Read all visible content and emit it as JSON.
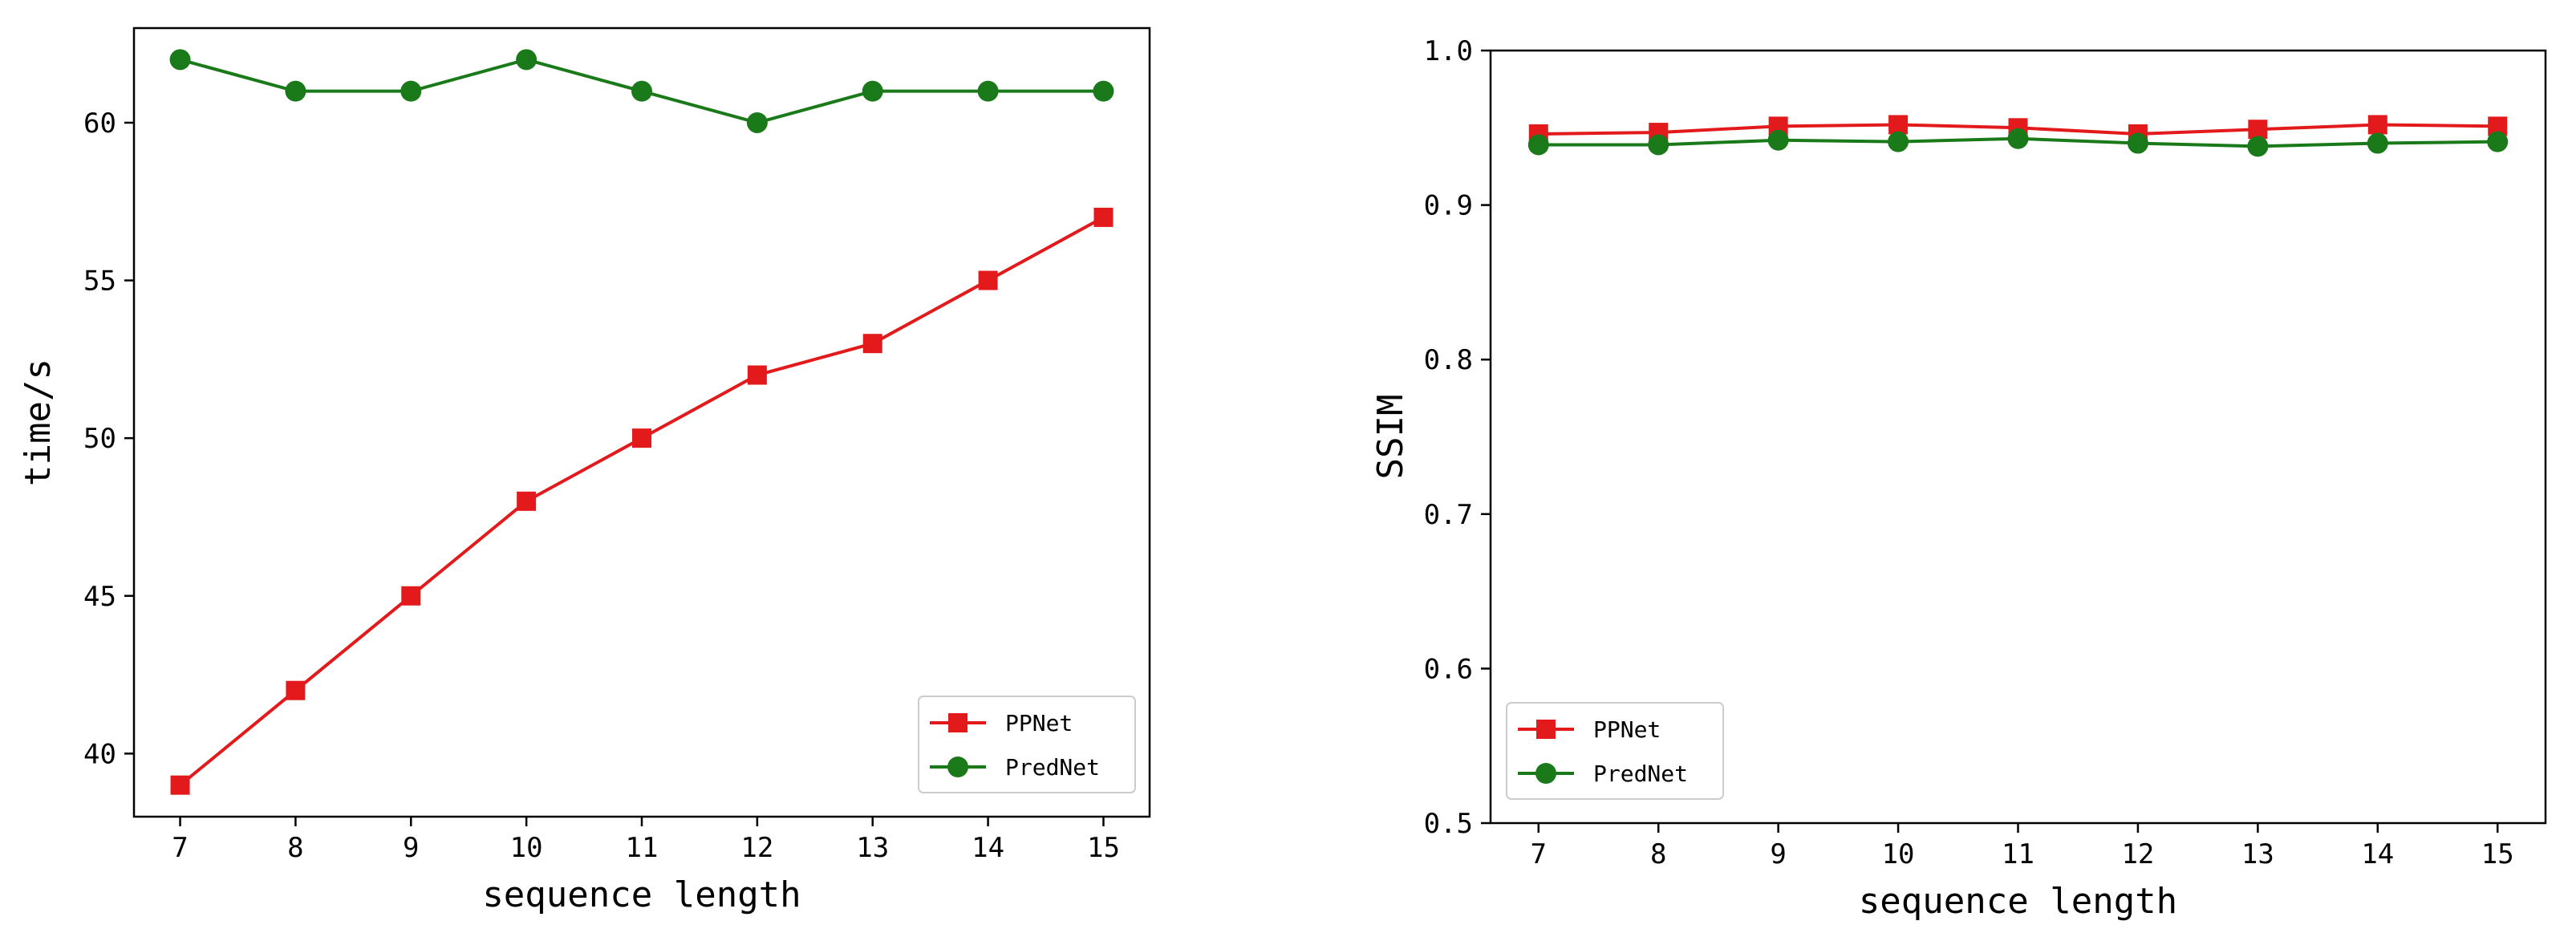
{
  "chart_data": [
    {
      "type": "line",
      "xlabel": "sequence length",
      "ylabel": "time/s",
      "x": [
        7,
        8,
        9,
        10,
        11,
        12,
        13,
        14,
        15
      ],
      "xlim": [
        6.6,
        15.4
      ],
      "ylim": [
        38,
        63
      ],
      "xticks": [
        "7",
        "8",
        "9",
        "10",
        "11",
        "12",
        "13",
        "14",
        "15"
      ],
      "yticks": [
        "40",
        "45",
        "50",
        "55",
        "60"
      ],
      "legend_position": "lower right",
      "grid": false,
      "series": [
        {
          "name": "PPNet",
          "color": "#e31a1c",
          "marker": "square",
          "values": [
            39,
            42,
            45,
            48,
            50,
            52,
            53,
            55,
            57
          ]
        },
        {
          "name": "PredNet",
          "color": "#1a7a1a",
          "marker": "circle",
          "values": [
            62,
            61,
            61,
            62,
            61,
            60,
            61,
            61,
            61
          ]
        }
      ]
    },
    {
      "type": "line",
      "xlabel": "sequence length",
      "ylabel": "SSIM",
      "x": [
        7,
        8,
        9,
        10,
        11,
        12,
        13,
        14,
        15
      ],
      "xlim": [
        6.6,
        15.4
      ],
      "ylim": [
        0.5,
        1.0
      ],
      "xticks": [
        "7",
        "8",
        "9",
        "10",
        "11",
        "12",
        "13",
        "14",
        "15"
      ],
      "yticks": [
        "0.5",
        "0.6",
        "0.7",
        "0.8",
        "0.9",
        "1.0"
      ],
      "legend_position": "lower left",
      "grid": false,
      "series": [
        {
          "name": "PPNet",
          "color": "#e31a1c",
          "marker": "square",
          "values": [
            0.946,
            0.947,
            0.951,
            0.952,
            0.95,
            0.946,
            0.949,
            0.952,
            0.951
          ]
        },
        {
          "name": "PredNet",
          "color": "#1a7a1a",
          "marker": "circle",
          "values": [
            0.939,
            0.939,
            0.942,
            0.941,
            0.943,
            0.94,
            0.938,
            0.94,
            0.941
          ]
        }
      ]
    }
  ]
}
